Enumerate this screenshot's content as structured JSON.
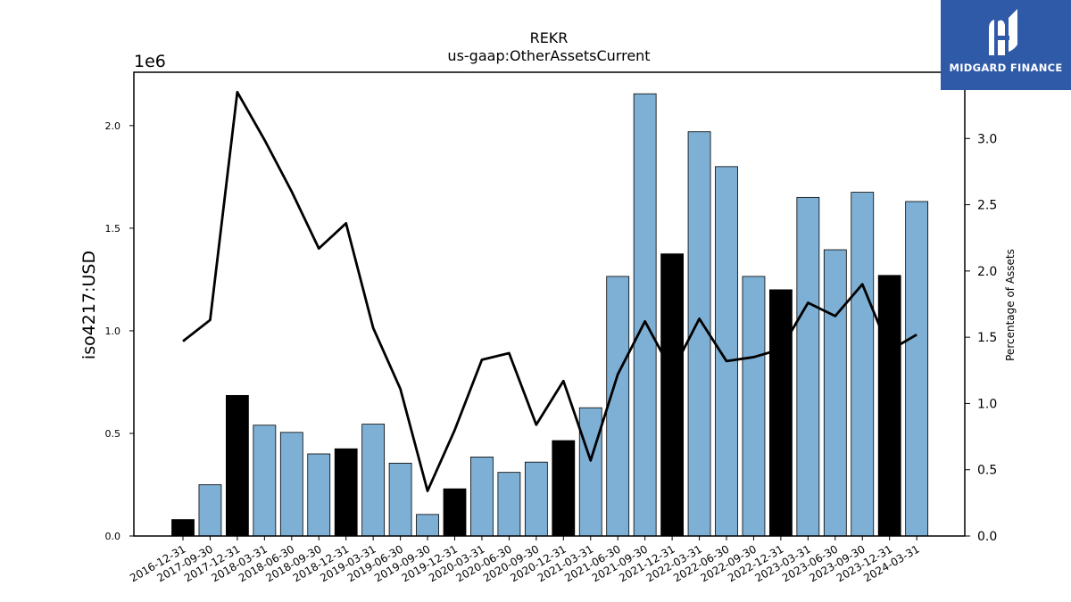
{
  "brand": {
    "name": "MIDGARD FINANCE",
    "logo_icon": "midgard-logo-icon",
    "background": "#2f5aa8"
  },
  "chart_data": {
    "type": "bar",
    "title": "REKR",
    "subtitle": "us-gaap:OtherAssetsCurrent",
    "ylabel": "iso4217:USD",
    "y_scale_note": "1e6",
    "y2label": "Percentage of Assets",
    "ylim": [
      0,
      2260000
    ],
    "y2lim": [
      0,
      3.5
    ],
    "yticks": [
      "0.0",
      "0.5",
      "1.0",
      "1.5",
      "2.0"
    ],
    "y2ticks": [
      "0.0",
      "0.5",
      "1.0",
      "1.5",
      "2.0",
      "2.5",
      "3.0"
    ],
    "categories": [
      "2016-12-31",
      "2017-09-30",
      "2017-12-31",
      "2018-03-31",
      "2018-06-30",
      "2018-09-30",
      "2018-12-31",
      "2019-03-31",
      "2019-06-30",
      "2019-09-30",
      "2019-12-31",
      "2020-03-31",
      "2020-06-30",
      "2020-09-30",
      "2020-12-31",
      "2021-03-31",
      "2021-06-30",
      "2021-09-30",
      "2021-12-31",
      "2022-03-31",
      "2022-06-30",
      "2022-09-30",
      "2022-12-31",
      "2023-03-31",
      "2023-06-30",
      "2023-09-30",
      "2023-12-31",
      "2024-03-31"
    ],
    "values": [
      80000,
      250000,
      685000,
      540000,
      505000,
      400000,
      425000,
      545000,
      355000,
      105000,
      230000,
      385000,
      310000,
      360000,
      465000,
      625000,
      1265000,
      2155000,
      1375000,
      1970000,
      1800000,
      1265000,
      1200000,
      1650000,
      1395000,
      1675000,
      1270000,
      1630000
    ],
    "highlight_quarters": [
      "2016-12-31",
      "2017-12-31",
      "2018-12-31",
      "2019-12-31",
      "2020-12-31",
      "2021-12-31",
      "2022-12-31",
      "2023-12-31"
    ],
    "colors": {
      "bar": "#7eb0d5",
      "bar_highlight": "#000000",
      "line": "#000000"
    },
    "line_series": {
      "name": "Percentage of Assets",
      "values": [
        1.47,
        1.63,
        3.35,
        2.99,
        2.6,
        2.17,
        2.36,
        1.57,
        1.11,
        0.34,
        0.8,
        1.33,
        1.38,
        0.84,
        1.17,
        0.57,
        1.22,
        1.62,
        1.24,
        1.64,
        1.32,
        1.35,
        1.41,
        1.76,
        1.66,
        1.9,
        1.4,
        1.52
      ]
    },
    "grid": false,
    "legend": "none"
  }
}
